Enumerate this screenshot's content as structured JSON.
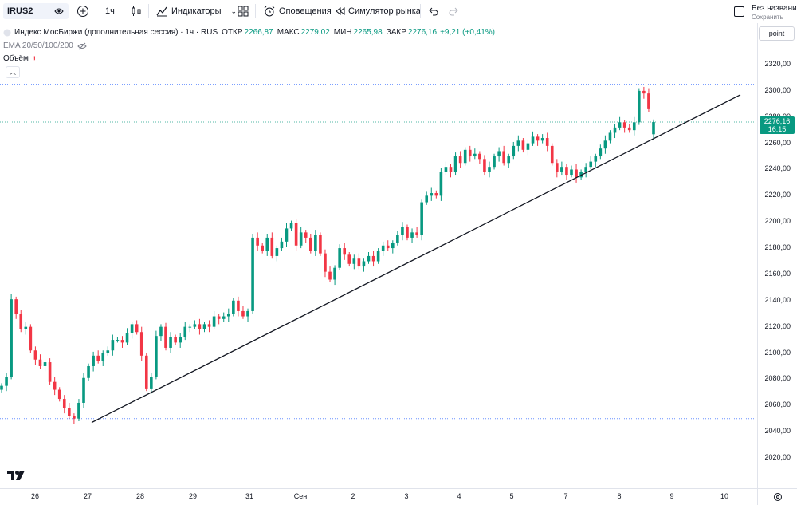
{
  "toolbar": {
    "symbol": "IRUS2",
    "interval": "1ч",
    "indicators_label": "Индикаторы",
    "alerts_label": "Оповещения",
    "replay_label": "Симулятор рынка",
    "layout_name": "Без названия",
    "layout_status": "Сохранить"
  },
  "legend": {
    "title": "Индекс МосБиржи (дополнительная сессия) · 1ч · RUS",
    "open_label": "ОТКР",
    "open_value": "2266,87",
    "high_label": "МАКС",
    "high_value": "2279,02",
    "low_label": "МИН",
    "low_value": "2265,98",
    "close_label": "ЗАКР",
    "close_value": "2276,16",
    "change": "+9,21 (+0,41%)",
    "ema_label": "EMA 20/50/100/200",
    "volume_label": "Объём"
  },
  "price_axis": {
    "mode_button": "point",
    "labels": [
      "2320,00",
      "2300,00",
      "2280,00",
      "2260,00",
      "2240,00",
      "2220,00",
      "2200,00",
      "2180,00",
      "2160,00",
      "2140,00",
      "2120,00",
      "2100,00",
      "2080,00",
      "2060,00",
      "2040,00",
      "2020,00"
    ],
    "current_price": "2276,16",
    "countdown": "16:15"
  },
  "time_axis": {
    "labels": [
      "26",
      "27",
      "28",
      "29",
      "31",
      "Сен",
      "2",
      "3",
      "4",
      "5",
      "7",
      "8",
      "9",
      "10"
    ]
  },
  "colors": {
    "up": "#089981",
    "down": "#f23645",
    "trendline": "#131722",
    "level": "#2962ff",
    "current": "#089981"
  },
  "chart_data": {
    "type": "candlestick",
    "title": "Индекс МосБиржи (дополнительная сессия) · 1ч · RUS",
    "ylim": [
      2010,
      2330
    ],
    "x_labels": [
      "26",
      "27",
      "28",
      "29",
      "31",
      "Сен",
      "2",
      "3",
      "4",
      "5",
      "7",
      "8",
      "9",
      "10"
    ],
    "trendline": {
      "from": {
        "x_label": "27",
        "price": 2047
      },
      "to": {
        "x_label": "10",
        "price": 2297
      }
    },
    "levels": [
      2305,
      2276.16,
      2050
    ],
    "close_series": [
      2075,
      2082,
      2141,
      2130,
      2118,
      2120,
      2102,
      2095,
      2090,
      2093,
      2078,
      2072,
      2065,
      2058,
      2052,
      2050,
      2062,
      2081,
      2090,
      2098,
      2094,
      2100,
      2102,
      2110,
      2110,
      2108,
      2115,
      2122,
      2116,
      2098,
      2073,
      2082,
      2113,
      2120,
      2104,
      2112,
      2108,
      2112,
      2120,
      2120,
      2122,
      2118,
      2122,
      2120,
      2128,
      2126,
      2128,
      2130,
      2140,
      2132,
      2128,
      2132,
      2188,
      2182,
      2178,
      2188,
      2174,
      2180,
      2185,
      2195,
      2199,
      2182,
      2192,
      2188,
      2178,
      2190,
      2176,
      2162,
      2156,
      2165,
      2180,
      2175,
      2168,
      2172,
      2166,
      2170,
      2174,
      2170,
      2178,
      2182,
      2180,
      2184,
      2190,
      2196,
      2188,
      2192,
      2190,
      2215,
      2220,
      2222,
      2220,
      2238,
      2242,
      2238,
      2250,
      2245,
      2255,
      2250,
      2252,
      2248,
      2238,
      2242,
      2250,
      2254,
      2245,
      2250,
      2258,
      2262,
      2255,
      2260,
      2265,
      2262,
      2264,
      2258,
      2245,
      2238,
      2242,
      2236,
      2240,
      2234,
      2238,
      2242,
      2246,
      2250,
      2256,
      2262,
      2268,
      2272,
      2276,
      2272,
      2270,
      2276,
      2300,
      2298,
      2286,
      2276.16
    ]
  }
}
